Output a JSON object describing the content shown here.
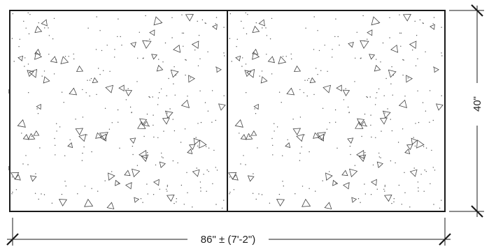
{
  "drawing": {
    "panel_count": 2,
    "stroke_color": "#1a1a1a",
    "fill_color": "#ffffff",
    "texture": "concrete-stipple",
    "width_dimension_label": "86\" ± (7'-2\")",
    "height_dimension_label": "40\""
  }
}
